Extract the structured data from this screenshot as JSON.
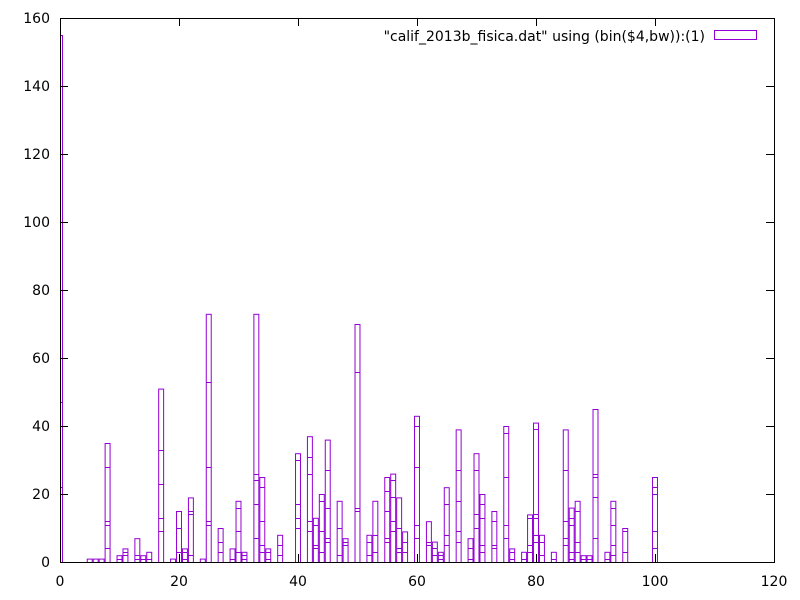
{
  "chart_data": {
    "type": "bar",
    "title": "",
    "xlabel": "",
    "ylabel": "",
    "xlim": [
      0,
      120
    ],
    "ylim": [
      0,
      160
    ],
    "x_ticks": [
      0,
      20,
      40,
      60,
      80,
      100,
      120
    ],
    "y_ticks": [
      0,
      20,
      40,
      60,
      80,
      100,
      120,
      140,
      160
    ],
    "grid": false,
    "legend_position": "top-right",
    "bin_width": 1,
    "series": [
      {
        "name": "\"calif_2013b_fisica.dat\" using (bin($4,bw)):(1)",
        "color": "#9400d3",
        "bars": [
          {
            "x": 0,
            "value": 155,
            "stacks": [
              20,
              22,
              47,
              155
            ]
          },
          {
            "x": 5,
            "value": 1,
            "stacks": [
              1
            ]
          },
          {
            "x": 6,
            "value": 1,
            "stacks": [
              1
            ]
          },
          {
            "x": 7,
            "value": 1,
            "stacks": [
              1
            ]
          },
          {
            "x": 8,
            "value": 35,
            "stacks": [
              4,
              11,
              12,
              28,
              35
            ]
          },
          {
            "x": 10,
            "value": 2,
            "stacks": [
              1,
              2
            ]
          },
          {
            "x": 11,
            "value": 4,
            "stacks": [
              2,
              3,
              4
            ]
          },
          {
            "x": 13,
            "value": 7,
            "stacks": [
              1,
              2,
              7
            ]
          },
          {
            "x": 14,
            "value": 2,
            "stacks": [
              1,
              2
            ]
          },
          {
            "x": 15,
            "value": 3,
            "stacks": [
              1,
              3
            ]
          },
          {
            "x": 17,
            "value": 51,
            "stacks": [
              9,
              13,
              23,
              33,
              51
            ]
          },
          {
            "x": 19,
            "value": 1,
            "stacks": [
              1
            ]
          },
          {
            "x": 20,
            "value": 15,
            "stacks": [
              3,
              10,
              15
            ]
          },
          {
            "x": 21,
            "value": 4,
            "stacks": [
              1,
              3,
              4
            ]
          },
          {
            "x": 22,
            "value": 19,
            "stacks": [
              2,
              14,
              15,
              19
            ]
          },
          {
            "x": 24,
            "value": 1,
            "stacks": [
              1
            ]
          },
          {
            "x": 25,
            "value": 73,
            "stacks": [
              11,
              12,
              28,
              53,
              73
            ]
          },
          {
            "x": 27,
            "value": 10,
            "stacks": [
              3,
              6,
              10
            ]
          },
          {
            "x": 29,
            "value": 4,
            "stacks": [
              1,
              4
            ]
          },
          {
            "x": 30,
            "value": 18,
            "stacks": [
              3,
              9,
              16,
              18
            ]
          },
          {
            "x": 31,
            "value": 3,
            "stacks": [
              1,
              2,
              3
            ]
          },
          {
            "x": 33,
            "value": 73,
            "stacks": [
              7,
              17,
              24,
              26,
              73
            ]
          },
          {
            "x": 34,
            "value": 25,
            "stacks": [
              3,
              5,
              12,
              22,
              25
            ]
          },
          {
            "x": 35,
            "value": 4,
            "stacks": [
              1,
              3,
              4
            ]
          },
          {
            "x": 37,
            "value": 8,
            "stacks": [
              2,
              5,
              8
            ]
          },
          {
            "x": 40,
            "value": 32,
            "stacks": [
              10,
              13,
              17,
              30,
              32
            ]
          },
          {
            "x": 42,
            "value": 37,
            "stacks": [
              9,
              12,
              26,
              31,
              37
            ]
          },
          {
            "x": 43,
            "value": 13,
            "stacks": [
              4,
              5,
              11,
              13
            ]
          },
          {
            "x": 44,
            "value": 20,
            "stacks": [
              3,
              9,
              18,
              20
            ]
          },
          {
            "x": 45,
            "value": 36,
            "stacks": [
              6,
              7,
              16,
              27,
              36
            ]
          },
          {
            "x": 47,
            "value": 18,
            "stacks": [
              2,
              10,
              18
            ]
          },
          {
            "x": 48,
            "value": 7,
            "stacks": [
              5,
              6,
              7
            ]
          },
          {
            "x": 50,
            "value": 70,
            "stacks": [
              15,
              16,
              56,
              70
            ]
          },
          {
            "x": 52,
            "value": 8,
            "stacks": [
              2,
              6,
              8
            ]
          },
          {
            "x": 53,
            "value": 18,
            "stacks": [
              3,
              8,
              18
            ]
          },
          {
            "x": 55,
            "value": 25,
            "stacks": [
              6,
              7,
              15,
              21,
              25
            ]
          },
          {
            "x": 56,
            "value": 26,
            "stacks": [
              9,
              12,
              19,
              24,
              26
            ]
          },
          {
            "x": 57,
            "value": 19,
            "stacks": [
              3,
              4,
              10,
              19
            ]
          },
          {
            "x": 58,
            "value": 9,
            "stacks": [
              3,
              6,
              9
            ]
          },
          {
            "x": 60,
            "value": 43,
            "stacks": [
              7,
              11,
              28,
              40,
              43
            ]
          },
          {
            "x": 62,
            "value": 12,
            "stacks": [
              5,
              6,
              12
            ]
          },
          {
            "x": 63,
            "value": 6,
            "stacks": [
              2,
              4,
              6
            ]
          },
          {
            "x": 64,
            "value": 3,
            "stacks": [
              1,
              2,
              3
            ]
          },
          {
            "x": 65,
            "value": 22,
            "stacks": [
              5,
              8,
              17,
              22
            ]
          },
          {
            "x": 67,
            "value": 39,
            "stacks": [
              6,
              9,
              18,
              27,
              39
            ]
          },
          {
            "x": 69,
            "value": 7,
            "stacks": [
              1,
              4,
              7
            ]
          },
          {
            "x": 70,
            "value": 32,
            "stacks": [
              10,
              14,
              27,
              32
            ]
          },
          {
            "x": 71,
            "value": 20,
            "stacks": [
              3,
              5,
              13,
              17,
              20
            ]
          },
          {
            "x": 73,
            "value": 15,
            "stacks": [
              4,
              5,
              12,
              15
            ]
          },
          {
            "x": 75,
            "value": 40,
            "stacks": [
              7,
              11,
              25,
              38,
              40
            ]
          },
          {
            "x": 76,
            "value": 4,
            "stacks": [
              1,
              3,
              4
            ]
          },
          {
            "x": 78,
            "value": 3,
            "stacks": [
              1,
              3
            ]
          },
          {
            "x": 79,
            "value": 14,
            "stacks": [
              3,
              5,
              13,
              14
            ]
          },
          {
            "x": 80,
            "value": 41,
            "stacks": [
              6,
              8,
              13,
              14,
              39,
              41
            ]
          },
          {
            "x": 81,
            "value": 8,
            "stacks": [
              2,
              6,
              8
            ]
          },
          {
            "x": 83,
            "value": 3,
            "stacks": [
              1,
              3
            ]
          },
          {
            "x": 85,
            "value": 39,
            "stacks": [
              5,
              7,
              12,
              27,
              39
            ]
          },
          {
            "x": 86,
            "value": 16,
            "stacks": [
              1,
              3,
              11,
              13,
              16
            ]
          },
          {
            "x": 87,
            "value": 18,
            "stacks": [
              3,
              6,
              15,
              18
            ]
          },
          {
            "x": 88,
            "value": 2,
            "stacks": [
              1,
              2
            ]
          },
          {
            "x": 89,
            "value": 2,
            "stacks": [
              1,
              2
            ]
          },
          {
            "x": 90,
            "value": 45,
            "stacks": [
              7,
              19,
              25,
              26,
              45
            ]
          },
          {
            "x": 92,
            "value": 3,
            "stacks": [
              1,
              3
            ]
          },
          {
            "x": 93,
            "value": 18,
            "stacks": [
              2,
              5,
              11,
              16,
              18
            ]
          },
          {
            "x": 95,
            "value": 10,
            "stacks": [
              3,
              9,
              10
            ]
          },
          {
            "x": 100,
            "value": 25,
            "stacks": [
              4,
              9,
              20,
              22,
              25
            ]
          }
        ]
      }
    ]
  }
}
